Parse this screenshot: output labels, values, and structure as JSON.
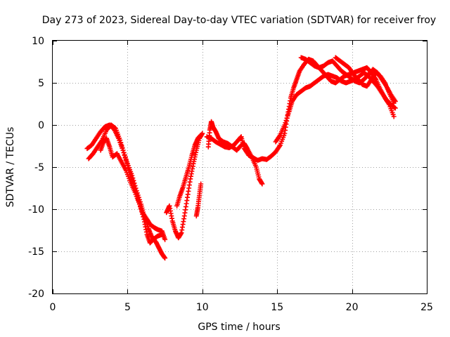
{
  "chart_data": {
    "type": "scatter",
    "title": "Day 273 of 2023, Sidereal Day-to-day VTEC variation (SDTVAR) for receiver froy",
    "xlabel": "GPS time / hours",
    "ylabel": "SDTVAR / TECUs",
    "xlim": [
      0,
      25
    ],
    "ylim": [
      -20,
      10
    ],
    "xticks": [
      0,
      5,
      10,
      15,
      20,
      25
    ],
    "yticks": [
      -20,
      -15,
      -10,
      -5,
      0,
      5,
      10
    ],
    "xtick_labels": [
      "0",
      "5",
      "10",
      "15",
      "20",
      "25"
    ],
    "ytick_labels": [
      "-20",
      "-15",
      "-10",
      "-5",
      "0",
      "5",
      "10"
    ],
    "grid": true,
    "marker": "+",
    "series": [
      {
        "name": "track-1",
        "color": "#ff0000",
        "points": [
          [
            2.3,
            -2.8
          ],
          [
            2.6,
            -2.4
          ],
          [
            2.9,
            -1.6
          ],
          [
            3.2,
            -0.8
          ],
          [
            3.5,
            -0.2
          ],
          [
            3.8,
            0.0
          ],
          [
            4.1,
            -0.5
          ],
          [
            4.4,
            -1.6
          ],
          [
            4.7,
            -3.0
          ],
          [
            5.0,
            -4.6
          ],
          [
            5.3,
            -6.0
          ],
          [
            5.6,
            -7.8
          ],
          [
            5.9,
            -9.4
          ],
          [
            6.1,
            -10.8
          ],
          [
            6.4,
            -12.3
          ],
          [
            6.6,
            -13.2
          ],
          [
            6.9,
            -13.9
          ],
          [
            7.1,
            -14.6
          ],
          [
            7.3,
            -15.3
          ],
          [
            7.5,
            -15.8
          ]
        ]
      },
      {
        "name": "track-2",
        "color": "#ff0000",
        "points": [
          [
            2.4,
            -4.0
          ],
          [
            2.7,
            -3.4
          ],
          [
            3.0,
            -2.6
          ],
          [
            3.3,
            -1.8
          ],
          [
            3.6,
            -0.6
          ],
          [
            3.9,
            0.0
          ],
          [
            4.2,
            -0.4
          ],
          [
            4.5,
            -1.8
          ],
          [
            4.8,
            -3.6
          ],
          [
            5.1,
            -5.4
          ],
          [
            5.4,
            -7.0
          ],
          [
            5.7,
            -8.8
          ],
          [
            6.0,
            -10.4
          ],
          [
            6.3,
            -11.2
          ],
          [
            6.5,
            -11.8
          ],
          [
            6.8,
            -12.2
          ],
          [
            7.0,
            -12.4
          ],
          [
            7.3,
            -12.6
          ],
          [
            7.5,
            -13.6
          ]
        ]
      },
      {
        "name": "track-3",
        "color": "#ff0000",
        "points": [
          [
            3.2,
            -3.0
          ],
          [
            3.4,
            -2.0
          ],
          [
            3.6,
            -1.6
          ],
          [
            3.8,
            -2.6
          ],
          [
            4.0,
            -3.8
          ],
          [
            4.3,
            -3.4
          ],
          [
            4.6,
            -4.4
          ],
          [
            4.9,
            -5.4
          ],
          [
            5.2,
            -6.8
          ],
          [
            5.5,
            -8.0
          ],
          [
            5.8,
            -9.4
          ],
          [
            6.1,
            -11.2
          ],
          [
            6.3,
            -13.0
          ],
          [
            6.5,
            -14.0
          ],
          [
            6.7,
            -13.6
          ],
          [
            7.0,
            -13.2
          ],
          [
            7.3,
            -13.0
          ]
        ]
      },
      {
        "name": "track-4",
        "color": "#ff0000",
        "points": [
          [
            7.6,
            -10.4
          ],
          [
            7.8,
            -9.6
          ],
          [
            8.0,
            -11.4
          ],
          [
            8.2,
            -12.6
          ],
          [
            8.4,
            -13.4
          ],
          [
            8.6,
            -12.8
          ],
          [
            8.8,
            -10.8
          ],
          [
            9.0,
            -8.6
          ],
          [
            9.2,
            -6.4
          ],
          [
            9.4,
            -4.6
          ],
          [
            9.6,
            -3.0
          ],
          [
            9.8,
            -1.6
          ],
          [
            10.0,
            -1.0
          ]
        ]
      },
      {
        "name": "track-5",
        "color": "#ff0000",
        "points": [
          [
            8.3,
            -9.6
          ],
          [
            8.5,
            -8.4
          ],
          [
            8.7,
            -7.4
          ],
          [
            8.9,
            -6.2
          ],
          [
            9.1,
            -5.0
          ],
          [
            9.3,
            -3.6
          ],
          [
            9.5,
            -2.4
          ],
          [
            9.7,
            -1.6
          ],
          [
            9.9,
            -1.2
          ]
        ]
      },
      {
        "name": "track-6",
        "color": "#ff0000",
        "points": [
          [
            9.6,
            -10.8
          ],
          [
            9.7,
            -9.8
          ],
          [
            9.8,
            -8.4
          ],
          [
            9.9,
            -7.0
          ]
        ]
      },
      {
        "name": "track-7",
        "color": "#ff0000",
        "points": [
          [
            10.4,
            -2.6
          ],
          [
            10.5,
            -0.6
          ],
          [
            10.6,
            0.4
          ],
          [
            10.7,
            -0.2
          ],
          [
            10.9,
            -0.8
          ],
          [
            11.1,
            -1.6
          ],
          [
            11.4,
            -2.0
          ],
          [
            11.7,
            -2.2
          ],
          [
            12.0,
            -2.6
          ],
          [
            12.3,
            -3.0
          ],
          [
            12.6,
            -2.4
          ],
          [
            12.8,
            -2.2
          ],
          [
            13.0,
            -2.8
          ],
          [
            13.3,
            -3.8
          ],
          [
            13.6,
            -5.0
          ],
          [
            13.8,
            -6.4
          ],
          [
            14.0,
            -7.0
          ]
        ]
      },
      {
        "name": "track-8",
        "color": "#ff0000",
        "points": [
          [
            10.3,
            -1.4
          ],
          [
            10.6,
            -1.6
          ],
          [
            10.9,
            -2.0
          ],
          [
            11.2,
            -2.3
          ],
          [
            11.5,
            -2.6
          ],
          [
            11.8,
            -2.7
          ],
          [
            12.1,
            -2.4
          ],
          [
            12.4,
            -1.8
          ],
          [
            12.6,
            -1.4
          ],
          [
            12.8,
            -2.8
          ],
          [
            13.1,
            -3.6
          ],
          [
            13.4,
            -3.9
          ],
          [
            13.7,
            -4.2
          ],
          [
            14.0,
            -4.0
          ],
          [
            14.3,
            -4.1
          ],
          [
            14.6,
            -3.7
          ],
          [
            14.9,
            -3.2
          ],
          [
            15.2,
            -2.4
          ],
          [
            15.5,
            -1.0
          ],
          [
            15.7,
            1.2
          ],
          [
            15.9,
            3.2
          ],
          [
            16.1,
            4.4
          ],
          [
            16.3,
            5.4
          ],
          [
            16.5,
            6.4
          ],
          [
            16.8,
            7.2
          ],
          [
            17.1,
            7.8
          ],
          [
            17.4,
            7.6
          ],
          [
            17.7,
            7.0
          ],
          [
            18.0,
            6.4
          ],
          [
            18.3,
            5.8
          ],
          [
            18.6,
            5.2
          ],
          [
            18.9,
            5.0
          ],
          [
            19.2,
            5.4
          ],
          [
            19.5,
            5.8
          ],
          [
            19.8,
            6.0
          ],
          [
            20.1,
            6.2
          ],
          [
            20.4,
            6.4
          ],
          [
            20.7,
            6.6
          ],
          [
            21.0,
            6.8
          ],
          [
            21.3,
            6.2
          ],
          [
            21.6,
            5.4
          ],
          [
            21.9,
            4.2
          ],
          [
            22.2,
            3.2
          ],
          [
            22.5,
            2.4
          ],
          [
            22.8,
            1.0
          ]
        ]
      },
      {
        "name": "track-9",
        "color": "#ff0000",
        "points": [
          [
            14.9,
            -2.0
          ],
          [
            15.2,
            -1.2
          ],
          [
            15.5,
            0.0
          ],
          [
            15.8,
            1.6
          ],
          [
            16.0,
            2.8
          ],
          [
            16.3,
            3.6
          ],
          [
            16.6,
            4.0
          ],
          [
            16.9,
            4.4
          ],
          [
            17.2,
            4.6
          ],
          [
            17.5,
            5.0
          ],
          [
            17.8,
            5.4
          ],
          [
            18.1,
            5.8
          ],
          [
            18.4,
            6.0
          ],
          [
            18.7,
            5.8
          ],
          [
            19.0,
            5.6
          ],
          [
            19.3,
            5.2
          ],
          [
            19.6,
            5.0
          ],
          [
            19.9,
            5.2
          ],
          [
            20.2,
            5.4
          ],
          [
            20.5,
            5.8
          ],
          [
            20.8,
            6.2
          ],
          [
            21.1,
            5.8
          ],
          [
            21.4,
            5.2
          ],
          [
            21.7,
            4.6
          ],
          [
            22.0,
            3.8
          ],
          [
            22.3,
            3.0
          ],
          [
            22.6,
            2.4
          ],
          [
            22.9,
            2.0
          ]
        ]
      },
      {
        "name": "track-10",
        "color": "#ff0000",
        "points": [
          [
            16.6,
            8.0
          ],
          [
            16.9,
            7.8
          ],
          [
            17.2,
            7.4
          ],
          [
            17.5,
            7.0
          ],
          [
            17.8,
            6.8
          ],
          [
            18.1,
            7.0
          ],
          [
            18.4,
            7.4
          ],
          [
            18.7,
            7.6
          ],
          [
            19.0,
            7.0
          ],
          [
            19.3,
            6.4
          ],
          [
            19.6,
            6.0
          ],
          [
            19.9,
            5.6
          ],
          [
            20.2,
            5.2
          ],
          [
            20.5,
            5.0
          ],
          [
            20.8,
            5.4
          ],
          [
            21.1,
            6.0
          ],
          [
            21.4,
            6.6
          ],
          [
            21.7,
            6.2
          ],
          [
            22.0,
            5.4
          ],
          [
            22.3,
            4.6
          ],
          [
            22.6,
            3.6
          ],
          [
            22.9,
            2.8
          ]
        ]
      },
      {
        "name": "track-11",
        "color": "#ff0000",
        "points": [
          [
            18.9,
            8.0
          ],
          [
            19.2,
            7.6
          ],
          [
            19.5,
            7.2
          ],
          [
            19.8,
            6.8
          ],
          [
            20.1,
            6.0
          ],
          [
            20.4,
            5.4
          ],
          [
            20.7,
            4.8
          ],
          [
            21.0,
            4.6
          ],
          [
            21.3,
            5.4
          ],
          [
            21.6,
            6.2
          ],
          [
            21.9,
            5.8
          ],
          [
            22.2,
            5.0
          ],
          [
            22.5,
            3.8
          ],
          [
            22.8,
            2.6
          ]
        ]
      }
    ]
  }
}
